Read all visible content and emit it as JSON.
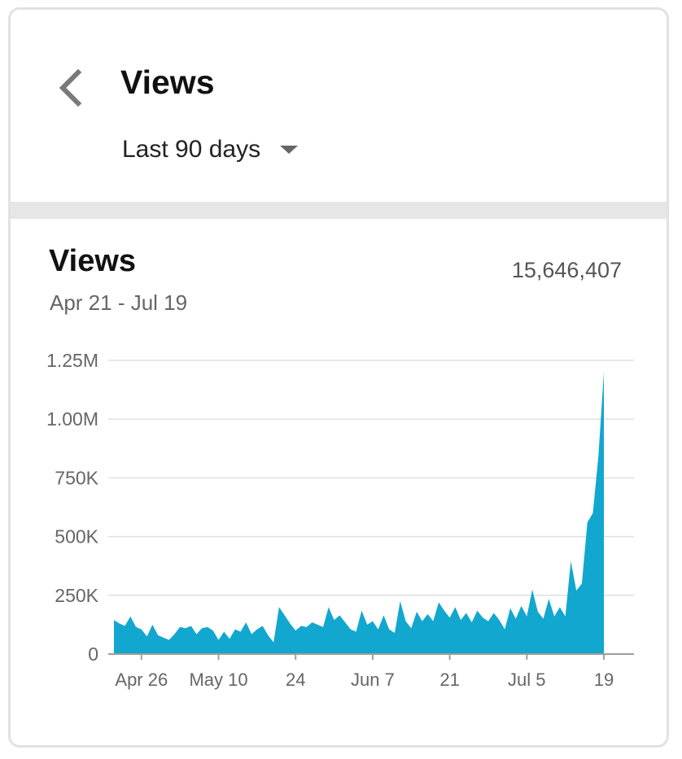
{
  "header": {
    "title": "Views",
    "range_selector": {
      "selected": "Last 90 days"
    },
    "back_icon": "chevron-left-icon",
    "dropdown_icon": "caret-down-icon"
  },
  "card": {
    "title": "Views",
    "total": "15,646,407",
    "date_range": "Apr 21 - Jul 19"
  },
  "colors": {
    "area_fill": "#12a7cf",
    "gridline": "#e0e0e0",
    "axis": "#9e9e9e"
  },
  "chart_data": {
    "type": "area",
    "title": "Views",
    "xlabel": "",
    "ylabel": "",
    "ylim": [
      0,
      1250000
    ],
    "grid": true,
    "legend": "none",
    "y_ticks": [
      {
        "value": 0,
        "label": "0"
      },
      {
        "value": 250000,
        "label": "250K"
      },
      {
        "value": 500000,
        "label": "500K"
      },
      {
        "value": 750000,
        "label": "750K"
      },
      {
        "value": 1000000,
        "label": "1.00M"
      },
      {
        "value": 1250000,
        "label": "1.25M"
      }
    ],
    "x_ticks": [
      {
        "date": "Apr 26",
        "label": "Apr 26"
      },
      {
        "date": "May 10",
        "label": "May 10"
      },
      {
        "date": "May 24",
        "label": "24"
      },
      {
        "date": "Jun 7",
        "label": "Jun 7"
      },
      {
        "date": "Jun 21",
        "label": "21"
      },
      {
        "date": "Jul 5",
        "label": "Jul 5"
      },
      {
        "date": "Jul 19",
        "label": "19"
      }
    ],
    "x": [
      "Apr 21",
      "Apr 22",
      "Apr 23",
      "Apr 24",
      "Apr 25",
      "Apr 26",
      "Apr 27",
      "Apr 28",
      "Apr 29",
      "Apr 30",
      "May 1",
      "May 2",
      "May 3",
      "May 4",
      "May 5",
      "May 6",
      "May 7",
      "May 8",
      "May 9",
      "May 10",
      "May 11",
      "May 12",
      "May 13",
      "May 14",
      "May 15",
      "May 16",
      "May 17",
      "May 18",
      "May 19",
      "May 20",
      "May 21",
      "May 22",
      "May 23",
      "May 24",
      "May 25",
      "May 26",
      "May 27",
      "May 28",
      "May 29",
      "May 30",
      "May 31",
      "Jun 1",
      "Jun 2",
      "Jun 3",
      "Jun 4",
      "Jun 5",
      "Jun 6",
      "Jun 7",
      "Jun 8",
      "Jun 9",
      "Jun 10",
      "Jun 11",
      "Jun 12",
      "Jun 13",
      "Jun 14",
      "Jun 15",
      "Jun 16",
      "Jun 17",
      "Jun 18",
      "Jun 19",
      "Jun 20",
      "Jun 21",
      "Jun 22",
      "Jun 23",
      "Jun 24",
      "Jun 25",
      "Jun 26",
      "Jun 27",
      "Jun 28",
      "Jun 29",
      "Jun 30",
      "Jul 1",
      "Jul 2",
      "Jul 3",
      "Jul 4",
      "Jul 5",
      "Jul 6",
      "Jul 7",
      "Jul 8",
      "Jul 9",
      "Jul 10",
      "Jul 11",
      "Jul 12",
      "Jul 13",
      "Jul 14",
      "Jul 15",
      "Jul 16",
      "Jul 17",
      "Jul 18",
      "Jul 19"
    ],
    "series": [
      {
        "values": [
          145000,
          130000,
          120000,
          160000,
          115000,
          105000,
          75000,
          125000,
          80000,
          70000,
          60000,
          85000,
          115000,
          110000,
          120000,
          85000,
          110000,
          115000,
          100000,
          60000,
          95000,
          65000,
          105000,
          95000,
          135000,
          85000,
          105000,
          120000,
          80000,
          50000,
          200000,
          165000,
          130000,
          100000,
          120000,
          115000,
          135000,
          125000,
          115000,
          200000,
          145000,
          165000,
          135000,
          105000,
          95000,
          185000,
          125000,
          140000,
          105000,
          165000,
          105000,
          90000,
          225000,
          140000,
          110000,
          180000,
          140000,
          170000,
          140000,
          220000,
          185000,
          155000,
          200000,
          145000,
          175000,
          135000,
          185000,
          155000,
          140000,
          175000,
          145000,
          105000,
          195000,
          150000,
          205000,
          160000,
          275000,
          180000,
          150000,
          235000,
          160000,
          200000,
          160000,
          395000,
          270000,
          300000,
          560000,
          600000,
          840000,
          1200000
        ]
      }
    ]
  }
}
